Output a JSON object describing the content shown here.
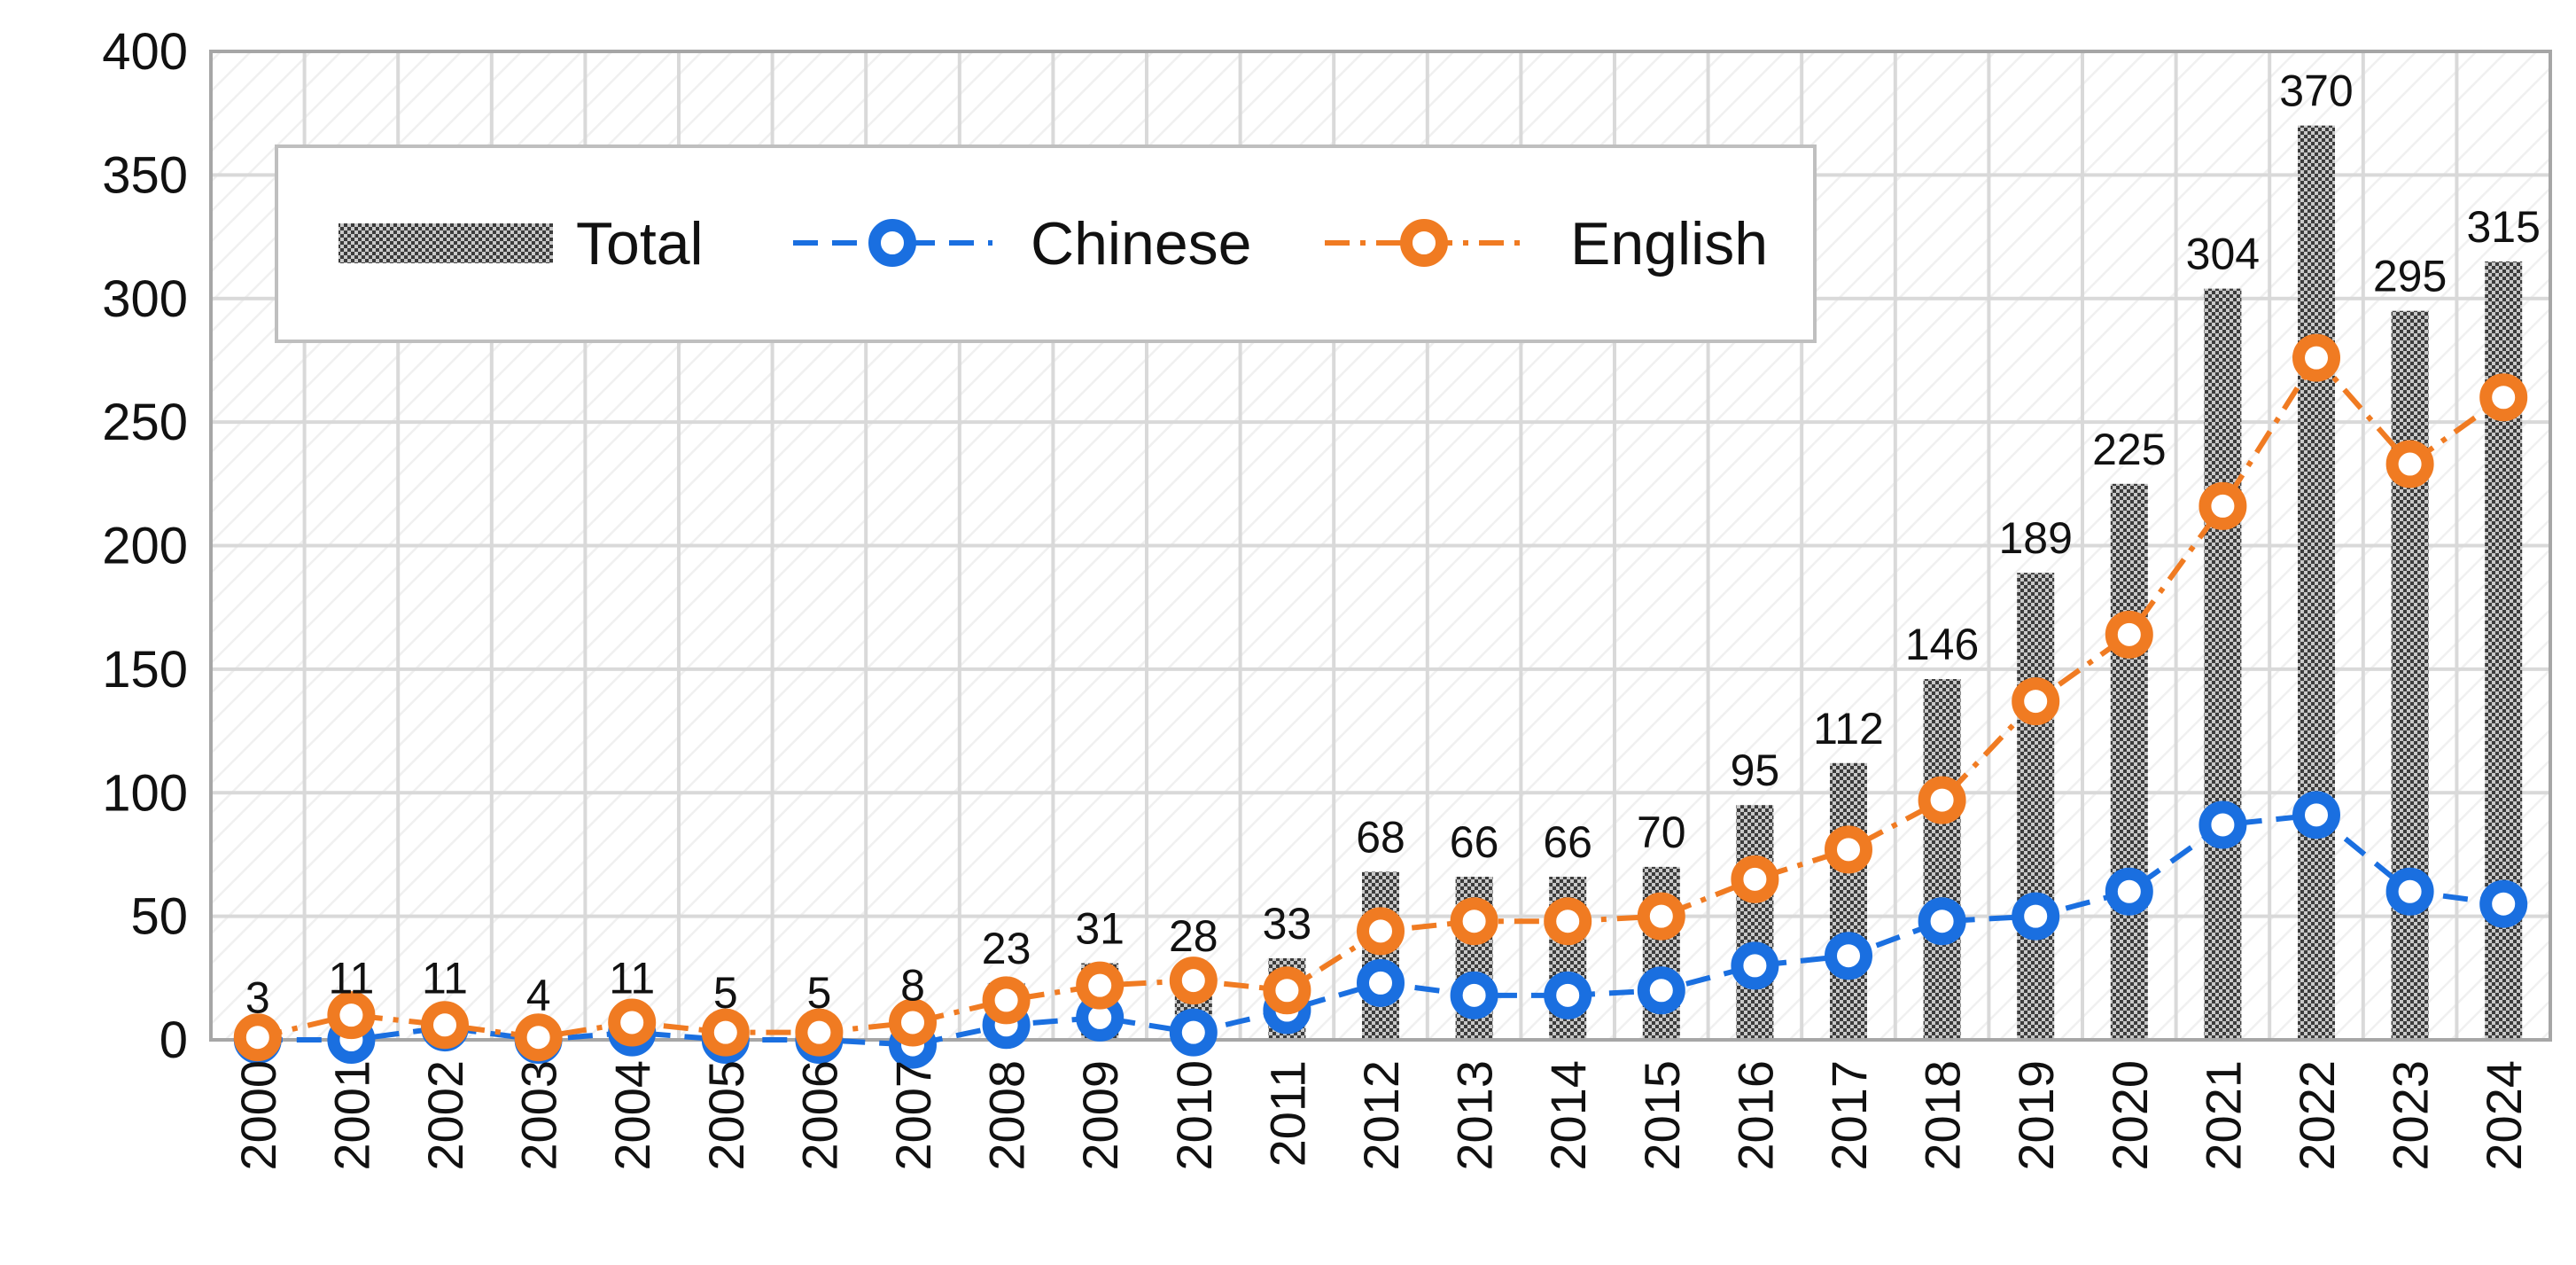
{
  "chart_data": {
    "type": "bar",
    "categories": [
      "2000",
      "2001",
      "2002",
      "2003",
      "2004",
      "2005",
      "2006",
      "2007",
      "2008",
      "2009",
      "2010",
      "2011",
      "2012",
      "2013",
      "2014",
      "2015",
      "2016",
      "2017",
      "2018",
      "2019",
      "2020",
      "2021",
      "2022",
      "2023",
      "2024"
    ],
    "series": [
      {
        "name": "Total",
        "type": "bar",
        "values": [
          3,
          11,
          11,
          4,
          11,
          5,
          5,
          8,
          23,
          31,
          28,
          33,
          68,
          66,
          66,
          70,
          95,
          112,
          146,
          189,
          225,
          304,
          370,
          295,
          315
        ]
      },
      {
        "name": "Chinese",
        "type": "line",
        "values": [
          0,
          0,
          5,
          0,
          3,
          0,
          0,
          -2,
          6,
          9,
          3,
          12,
          23,
          18,
          18,
          20,
          30,
          34,
          48,
          50,
          60,
          87,
          91,
          60,
          55
        ]
      },
      {
        "name": "English",
        "type": "line",
        "values": [
          1,
          10,
          6,
          1,
          7,
          3,
          3,
          7,
          16,
          22,
          24,
          20,
          44,
          48,
          48,
          50,
          65,
          77,
          97,
          137,
          164,
          216,
          276,
          233,
          260
        ]
      }
    ],
    "data_labels": [
      "3",
      "11",
      "11",
      "4",
      "11",
      "5",
      "5",
      "8",
      "23",
      "31",
      "28",
      "33",
      "68",
      "66",
      "66",
      "70",
      "95",
      "112",
      "146",
      "189",
      "225",
      "304",
      "370",
      "295",
      "315"
    ],
    "ylim": [
      0,
      400
    ],
    "yticks": [
      "0",
      "50",
      "100",
      "150",
      "200",
      "250",
      "300",
      "350",
      "400"
    ],
    "grid": true,
    "legend": {
      "position": "top-left",
      "entries": [
        "Total",
        "Chinese",
        "English"
      ]
    },
    "colors": {
      "total": "#7f7f7f",
      "chinese": "#1a6fe0",
      "english": "#f07b22",
      "grid": "#d9d9d9",
      "axis": "#a6a6a6"
    }
  }
}
